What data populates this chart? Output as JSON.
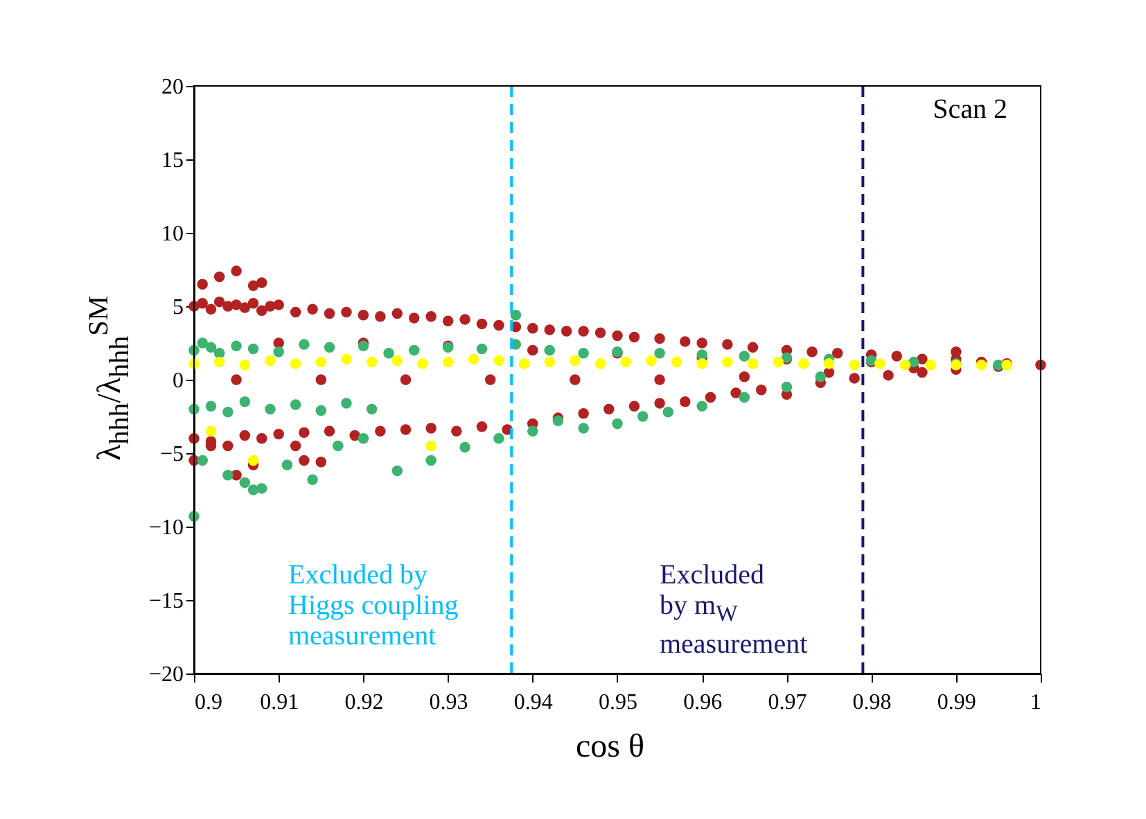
{
  "chart_data": {
    "type": "scatter",
    "xlabel": "cos θ",
    "ylabel": "λ$_{hhh}$/λ$_{hhh}$$^{SM}$",
    "xlim": [
      0.9,
      1
    ],
    "xticks": [
      0.9,
      0.91,
      0.92,
      0.93,
      0.94,
      0.95,
      0.96,
      0.97,
      0.98,
      0.99,
      1
    ],
    "ylim": [
      -20,
      20
    ],
    "yticks": [
      -20,
      -15,
      -10,
      -5,
      0,
      5,
      10,
      15,
      20
    ],
    "grid": false,
    "marker": "circle",
    "series": [
      {
        "color": "#b22222",
        "x": [
          0.9,
          0.901,
          0.902,
          0.903,
          0.904,
          0.905,
          0.906,
          0.907,
          0.908,
          0.909,
          0.91,
          0.912,
          0.914,
          0.916,
          0.918,
          0.92,
          0.922,
          0.924,
          0.926,
          0.928,
          0.93,
          0.932,
          0.934,
          0.936,
          0.938,
          0.94,
          0.942,
          0.944,
          0.946,
          0.948,
          0.95,
          0.952,
          0.955,
          0.958,
          0.96,
          0.963,
          0.966,
          0.97,
          0.973,
          0.976,
          0.98,
          0.983,
          0.986,
          0.99,
          0.993,
          0.996,
          1,
          0.901,
          0.903,
          0.905,
          0.907,
          0.908,
          0.9,
          0.902,
          0.905,
          0.907,
          0.912,
          0.913,
          0.915,
          0.9,
          0.902,
          0.904,
          0.906,
          0.908,
          0.91,
          0.913,
          0.916,
          0.919,
          0.922,
          0.925,
          0.928,
          0.931,
          0.934,
          0.937,
          0.94,
          0.943,
          0.946,
          0.949,
          0.952,
          0.955,
          0.958,
          0.961,
          0.964,
          0.967,
          0.97,
          0.974,
          0.978,
          0.982,
          0.986,
          0.99,
          0.995,
          0.905,
          0.915,
          0.925,
          0.935,
          0.945,
          0.955,
          0.965,
          0.975,
          0.985,
          0.91,
          0.92,
          0.93,
          0.94,
          0.95,
          0.96,
          0.97,
          0.98,
          0.99
        ],
        "values": [
          5,
          5.2,
          4.8,
          5.3,
          5,
          5.1,
          4.9,
          5.2,
          4.7,
          5,
          5.1,
          4.6,
          4.8,
          4.5,
          4.6,
          4.4,
          4.3,
          4.5,
          4.2,
          4.3,
          4,
          4.1,
          3.8,
          3.7,
          3.6,
          3.5,
          3.4,
          3.3,
          3.3,
          3.2,
          3,
          2.9,
          2.8,
          2.6,
          2.5,
          2.4,
          2.2,
          2,
          1.9,
          1.8,
          1.7,
          1.6,
          1.4,
          1.9,
          1.2,
          1.1,
          1,
          6.5,
          7,
          7.4,
          6.4,
          6.6,
          -5.5,
          -4.5,
          -6.5,
          -5.8,
          -4.5,
          -5.5,
          -5.6,
          -4,
          -4.2,
          -4.5,
          -3.8,
          -4,
          -3.7,
          -3.6,
          -3.5,
          -3.8,
          -3.5,
          -3.4,
          -3.3,
          -3.5,
          -3.2,
          -3.4,
          -3,
          -2.6,
          -2.3,
          -2,
          -1.8,
          -1.6,
          -1.5,
          -1.2,
          -0.9,
          -0.7,
          -1,
          -0.2,
          0.1,
          0.3,
          0.5,
          0.7,
          0.9,
          0,
          0,
          0,
          0,
          0,
          0,
          0.2,
          0.5,
          0.8,
          2.5,
          2.5,
          2.3,
          2,
          1.8,
          1.5,
          1.4,
          1.2,
          1.4
        ]
      },
      {
        "color": "#3cb371",
        "x": [
          0.9,
          0.901,
          0.902,
          0.903,
          0.905,
          0.907,
          0.91,
          0.913,
          0.916,
          0.92,
          0.923,
          0.926,
          0.93,
          0.934,
          0.938,
          0.942,
          0.946,
          0.95,
          0.955,
          0.96,
          0.965,
          0.97,
          0.975,
          0.98,
          0.985,
          0.99,
          0.995,
          0.9,
          0.902,
          0.904,
          0.906,
          0.909,
          0.912,
          0.915,
          0.918,
          0.921,
          0.901,
          0.904,
          0.906,
          0.907,
          0.908,
          0.911,
          0.914,
          0.917,
          0.92,
          0.924,
          0.928,
          0.932,
          0.936,
          0.94,
          0.943,
          0.946,
          0.95,
          0.953,
          0.956,
          0.96,
          0.965,
          0.97,
          0.974,
          0.938,
          0.9
        ],
        "values": [
          2,
          2.5,
          2.2,
          1.8,
          2.3,
          2.1,
          1.9,
          2.4,
          2.2,
          2.3,
          1.8,
          2,
          2.2,
          2.1,
          2.4,
          2,
          1.8,
          1.9,
          1.8,
          1.7,
          1.6,
          1.5,
          1.4,
          1.3,
          1.2,
          1.1,
          1,
          -2,
          -1.8,
          -2.2,
          -1.5,
          -2,
          -1.7,
          -2.1,
          -1.6,
          -2,
          -5.5,
          -6.5,
          -7,
          -7.5,
          -7.4,
          -5.8,
          -6.8,
          -4.5,
          -4,
          -6.2,
          -5.5,
          -4.6,
          -4,
          -3.5,
          -2.8,
          -3.3,
          -3,
          -2.5,
          -2.2,
          -1.8,
          -1.2,
          -0.5,
          0.2,
          4.4,
          -9.3
        ]
      },
      {
        "color": "#ffff00",
        "x": [
          0.9,
          0.903,
          0.906,
          0.909,
          0.912,
          0.915,
          0.918,
          0.921,
          0.924,
          0.927,
          0.93,
          0.933,
          0.936,
          0.939,
          0.942,
          0.945,
          0.948,
          0.951,
          0.954,
          0.957,
          0.96,
          0.963,
          0.966,
          0.969,
          0.972,
          0.975,
          0.978,
          0.981,
          0.984,
          0.987,
          0.99,
          0.993,
          0.996,
          0.902,
          0.907,
          0.928
        ],
        "values": [
          1.1,
          1.2,
          1,
          1.3,
          1.1,
          1.2,
          1.4,
          1.2,
          1.3,
          1.1,
          1.2,
          1.4,
          1.3,
          1.1,
          1.2,
          1.3,
          1.1,
          1.2,
          1.3,
          1.2,
          1.1,
          1.2,
          1.1,
          1.2,
          1.1,
          1.1,
          1.0,
          1.1,
          1,
          1,
          1,
          1,
          1,
          -3.5,
          -5.5,
          -4.5
        ]
      }
    ],
    "ref_lines": [
      {
        "axis": "x",
        "value": 0.9375,
        "color": "#00bfff",
        "line_style": "dashed"
      },
      {
        "axis": "x",
        "value": 0.979,
        "color": "#191970",
        "line_style": "dashed"
      }
    ],
    "annotations": [
      "Scan 2",
      "Excluded by\nHiggs coupling\nmeasurement",
      "Excluded\nby m$_{W}$\nmeasurement"
    ]
  }
}
